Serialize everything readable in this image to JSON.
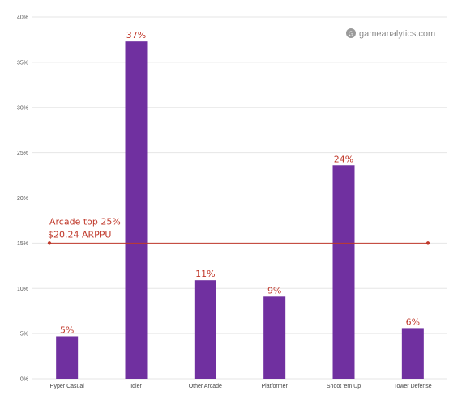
{
  "chart_data": {
    "type": "bar",
    "categories": [
      "Hyper Casual",
      "Idler",
      "Other Arcade",
      "Platformer",
      "Shoot 'em Up",
      "Tower Defense"
    ],
    "values": [
      4.7,
      37.3,
      10.9,
      9.1,
      23.6,
      5.6
    ],
    "value_labels": [
      "5%",
      "37%",
      "11%",
      "9%",
      "24%",
      "6%"
    ],
    "ylim": [
      0,
      40
    ],
    "yticks": [
      0,
      5,
      10,
      15,
      20,
      25,
      30,
      35,
      40
    ],
    "ytick_labels": [
      "0%",
      "5%",
      "10%",
      "15%",
      "20%",
      "25%",
      "30%",
      "35%",
      "40%"
    ],
    "grid": true,
    "bar_color": "#7030a0",
    "reference_line": {
      "value": 15,
      "label_line1": "Arcade top 25%",
      "label_line2": "$20.24 ARPPU",
      "color": "#c0392b"
    },
    "annotation_color": "#c0392b",
    "watermark": "gameanalytics.com"
  }
}
